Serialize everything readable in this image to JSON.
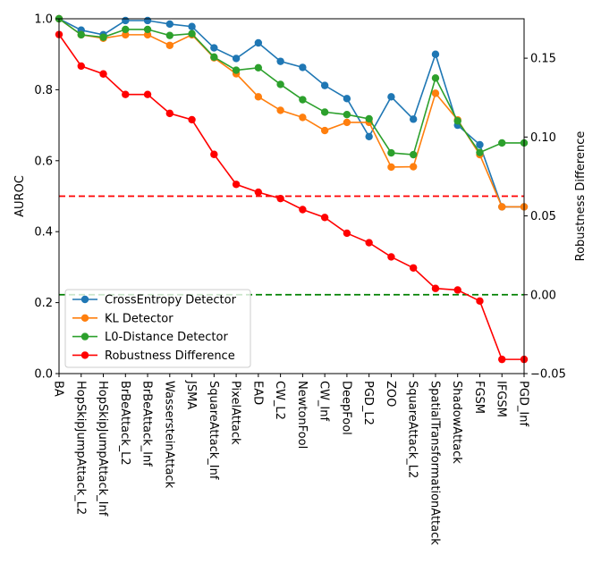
{
  "chart_data": {
    "type": "line",
    "categories": [
      "BA",
      "HopSkipJumpAttack_L2",
      "HopSkipJumpAttack_Inf",
      "BrBeAttack_L2",
      "BrBeAttack_Inf",
      "WassersteinAttack",
      "JSMA",
      "SquareAttack_Inf",
      "PixelAttack",
      "EAD",
      "CW_L2",
      "NewtonFool",
      "CW_Inf",
      "DeepFool",
      "PGD_L2",
      "ZOO",
      "SquareAttack_L2",
      "SpatialTransformationAttack",
      "ShadowAttack",
      "FGSM",
      "IFGSM",
      "PGD_Inf"
    ],
    "ylabel": "AUROC",
    "y2label": "Robustness Difference",
    "ylim": [
      0.0,
      1.0
    ],
    "y2lim": [
      -0.05,
      0.175
    ],
    "yticks": [
      "0.0",
      "0.2",
      "0.4",
      "0.6",
      "0.8",
      "1.0"
    ],
    "y2ticks": [
      "−0.05",
      "0.00",
      "0.05",
      "0.10",
      "0.15"
    ],
    "grid": false,
    "legend_position": "lower-left",
    "series": [
      {
        "name": "CrossEntropy Detector",
        "axis": "left",
        "color": "#1f77b4",
        "values": [
          1.0,
          0.968,
          0.955,
          0.995,
          0.995,
          0.985,
          0.978,
          0.918,
          0.888,
          0.932,
          0.88,
          0.863,
          0.812,
          0.775,
          0.668,
          0.78,
          0.717,
          0.9,
          0.7,
          0.645,
          0.47,
          0.47
        ]
      },
      {
        "name": "KL Detector",
        "axis": "left",
        "color": "#ff7f0e",
        "values": [
          1.0,
          0.955,
          0.945,
          0.955,
          0.955,
          0.925,
          0.955,
          0.89,
          0.845,
          0.78,
          0.742,
          0.722,
          0.685,
          0.708,
          0.708,
          0.582,
          0.583,
          0.79,
          0.715,
          0.617,
          0.47,
          0.47
        ]
      },
      {
        "name": "L0-Distance Detector",
        "axis": "left",
        "color": "#2ca02c",
        "values": [
          1.0,
          0.955,
          0.948,
          0.97,
          0.97,
          0.953,
          0.958,
          0.892,
          0.855,
          0.862,
          0.815,
          0.772,
          0.737,
          0.73,
          0.718,
          0.622,
          0.617,
          0.833,
          0.712,
          0.623,
          0.65,
          0.65
        ]
      },
      {
        "name": "Robustness Difference",
        "axis": "right",
        "color": "#ff0000",
        "values": [
          0.165,
          0.145,
          0.14,
          0.127,
          0.127,
          0.115,
          0.111,
          0.089,
          0.07,
          0.065,
          0.061,
          0.054,
          0.049,
          0.039,
          0.033,
          0.024,
          0.017,
          0.004,
          0.003,
          -0.004,
          -0.041,
          -0.041
        ]
      }
    ],
    "reference_lines": [
      {
        "axis": "left",
        "value": 0.5,
        "color": "#ff0000",
        "style": "dashed"
      },
      {
        "axis": "right",
        "value": 0.0,
        "color": "#008000",
        "style": "dashed"
      }
    ]
  }
}
